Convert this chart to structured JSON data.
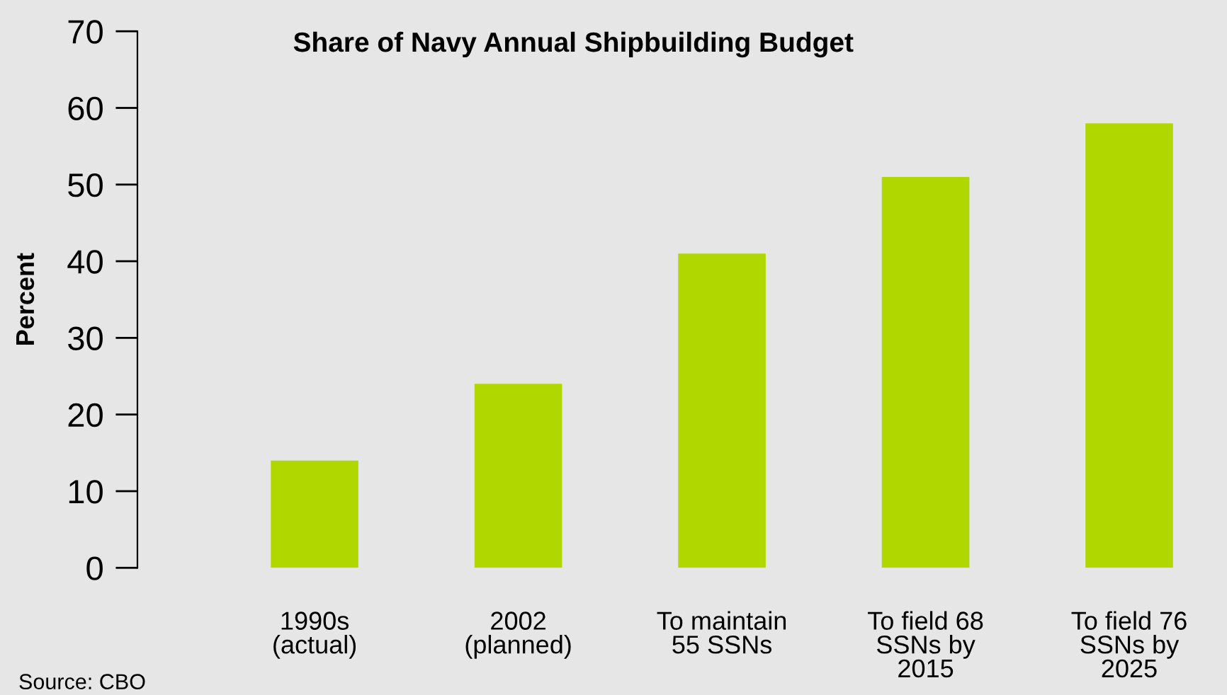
{
  "chart_data": {
    "type": "bar",
    "title": "Share of Navy Annual Shipbuilding Budget",
    "ylabel": "Percent",
    "categories": [
      "1990s\n(actual)",
      "2002\n(planned)",
      "To maintain\n55 SSNs",
      "To field 68\nSSNs by\n2015",
      "To field 76\nSSNs by\n2025"
    ],
    "values": [
      14,
      24,
      41,
      51,
      58
    ],
    "color": "#b0d800",
    "ylim": [
      0,
      70
    ],
    "yticks": [
      0,
      10,
      20,
      30,
      40,
      50,
      60,
      70
    ],
    "grid": false,
    "legend": false,
    "annotations": [
      "Source: CBO"
    ]
  }
}
